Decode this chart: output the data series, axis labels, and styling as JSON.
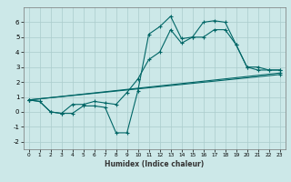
{
  "xlabel": "Humidex (Indice chaleur)",
  "background_color": "#cce8e8",
  "grid_color": "#aacccc",
  "line_color": "#006666",
  "xlim": [
    -0.5,
    23.5
  ],
  "ylim": [
    -2.5,
    7.0
  ],
  "xticks": [
    0,
    1,
    2,
    3,
    4,
    5,
    6,
    7,
    8,
    9,
    10,
    11,
    12,
    13,
    14,
    15,
    16,
    17,
    18,
    19,
    20,
    21,
    22,
    23
  ],
  "yticks": [
    -2,
    -1,
    0,
    1,
    2,
    3,
    4,
    5,
    6
  ],
  "line1_x": [
    0,
    1,
    2,
    3,
    4,
    5,
    6,
    7,
    8,
    9,
    10,
    11,
    12,
    13,
    14,
    15,
    16,
    17,
    18,
    19,
    20,
    21,
    22,
    23
  ],
  "line1_y": [
    0.8,
    0.7,
    0.0,
    -0.1,
    -0.1,
    0.4,
    0.4,
    0.3,
    -1.4,
    -1.4,
    1.4,
    5.2,
    5.7,
    6.4,
    4.9,
    5.0,
    6.0,
    6.1,
    6.0,
    4.5,
    3.0,
    3.0,
    2.8,
    2.8
  ],
  "line2_x": [
    0,
    1,
    2,
    3,
    4,
    5,
    6,
    7,
    8,
    9,
    10,
    11,
    12,
    13,
    14,
    15,
    16,
    17,
    18,
    19,
    20,
    21,
    22,
    23
  ],
  "line2_y": [
    0.8,
    0.7,
    0.0,
    -0.1,
    0.5,
    0.5,
    0.7,
    0.6,
    0.5,
    1.3,
    2.2,
    3.5,
    4.0,
    5.5,
    4.6,
    5.0,
    5.0,
    5.5,
    5.5,
    4.5,
    3.0,
    2.8,
    2.8,
    2.8
  ],
  "line3_x": [
    0,
    23
  ],
  "line3_y": [
    0.8,
    2.6
  ],
  "line4_x": [
    0,
    23
  ],
  "line4_y": [
    0.8,
    2.5
  ]
}
